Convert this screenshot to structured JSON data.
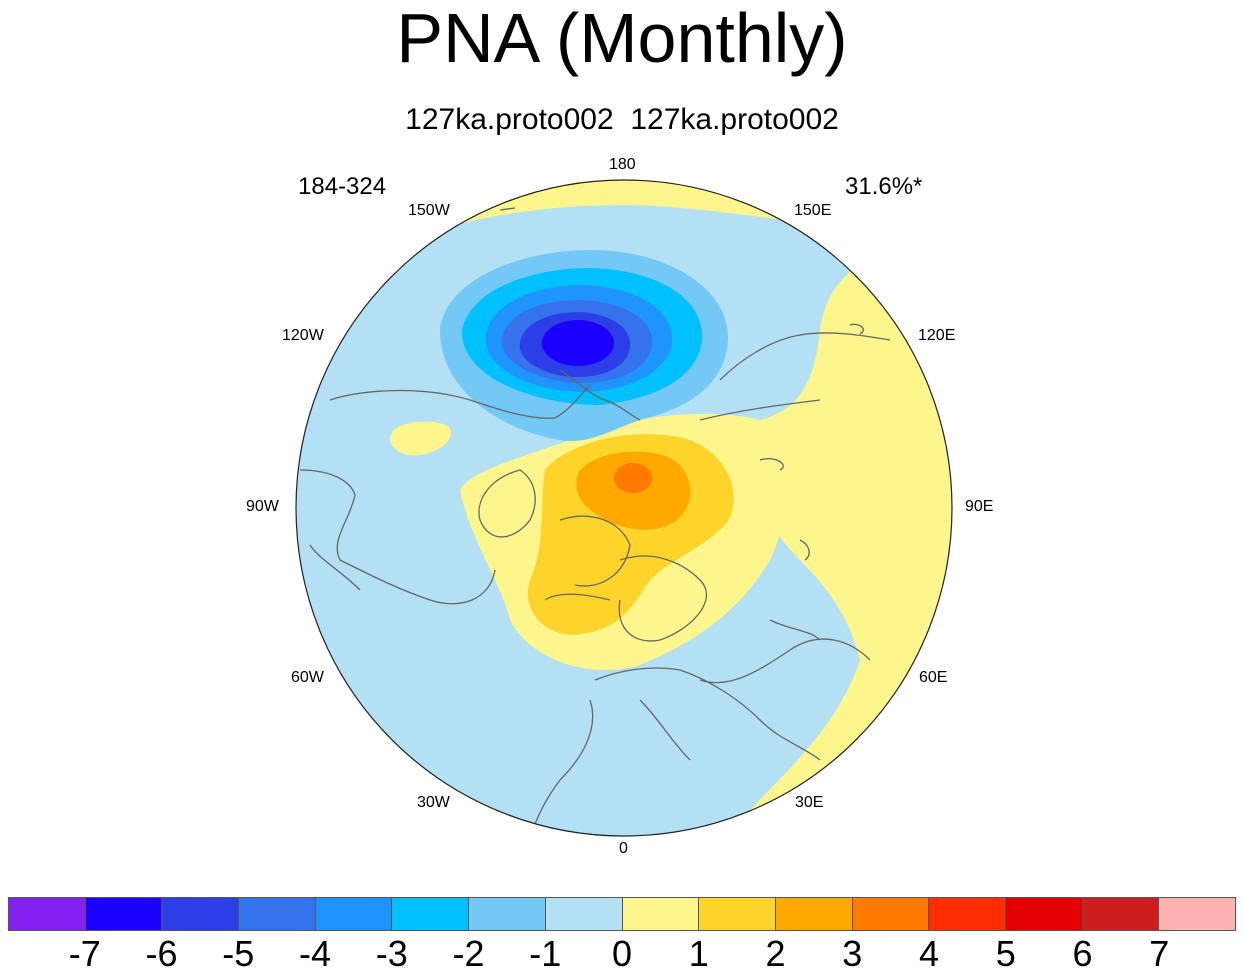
{
  "title": "PNA (Monthly)",
  "subtitle": "127ka.proto002  127ka.proto002",
  "left_annotation": "184-324",
  "right_annotation": "31.6%*",
  "map": {
    "projection": "north-polar-stereographic",
    "longitude_labels": {
      "lon_180": "180",
      "lon_150w": "150W",
      "lon_150e": "150E",
      "lon_120w": "120W",
      "lon_120e": "120E",
      "lon_90w": "90W",
      "lon_90e": "90E",
      "lon_60w": "60W",
      "lon_60e": "60E",
      "lon_30w": "30W",
      "lon_30e": "30E",
      "lon_0": "0"
    }
  },
  "colorbar": {
    "colors": [
      "#8322f0",
      "#1b00ff",
      "#2c3fe6",
      "#3473ec",
      "#1f94fe",
      "#00c0ff",
      "#74c8f6",
      "#b3e0f4",
      "#fdf68c",
      "#fed42a",
      "#fea800",
      "#ff7a00",
      "#ff2d00",
      "#e40000",
      "#cc1e1e",
      "#feb3b3"
    ],
    "labels": [
      "-7",
      "-6",
      "-5",
      "-4",
      "-3",
      "-2",
      "-1",
      "0",
      "1",
      "2",
      "3",
      "4",
      "5",
      "6",
      "7"
    ]
  }
}
